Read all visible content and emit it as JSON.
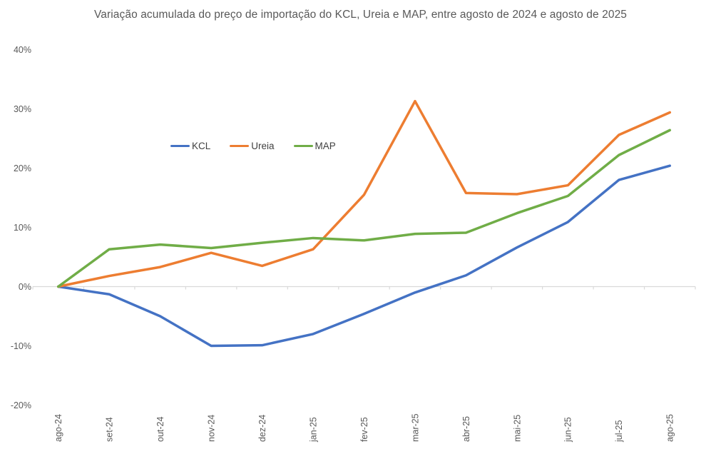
{
  "chart_data": {
    "type": "line",
    "title": "Variação acumulada do preço de importação do KCL, Ureia e MAP, entre agosto de 2024 e agosto de 2025",
    "categories": [
      "ago-24",
      "set-24",
      "out-24",
      "nov-24",
      "dez-24",
      "jan-25",
      "fev-25",
      "mar-25",
      "abr-25",
      "mai-25",
      "jun-25",
      "jul-25",
      "ago-25"
    ],
    "series": [
      {
        "name": "KCL",
        "color": "#4472C4",
        "values": [
          0,
          -1.3,
          -5.0,
          -10.0,
          -9.9,
          -8.0,
          -4.6,
          -1.0,
          1.9,
          6.6,
          10.9,
          18.0,
          20.4
        ]
      },
      {
        "name": "Ureia",
        "color": "#ED7D31",
        "values": [
          0,
          1.8,
          3.3,
          5.7,
          3.5,
          6.3,
          15.5,
          31.3,
          15.8,
          15.6,
          17.1,
          25.6,
          29.4
        ]
      },
      {
        "name": "MAP",
        "color": "#70AD47",
        "values": [
          0,
          6.3,
          7.1,
          6.5,
          7.4,
          8.2,
          7.8,
          8.9,
          9.1,
          12.4,
          15.3,
          22.2,
          26.4
        ]
      }
    ],
    "xlabel": "",
    "ylabel": "",
    "ylim": [
      -20,
      40
    ],
    "y_ticks": [
      40,
      30,
      20,
      10,
      0,
      -10,
      -20
    ],
    "y_tick_format": "percent",
    "grid": "none",
    "axis_line": "zero-baseline-only",
    "legend_position": "inside-upper-left",
    "axis_color": "#D9D9D9",
    "tick_label_color": "#595959"
  }
}
